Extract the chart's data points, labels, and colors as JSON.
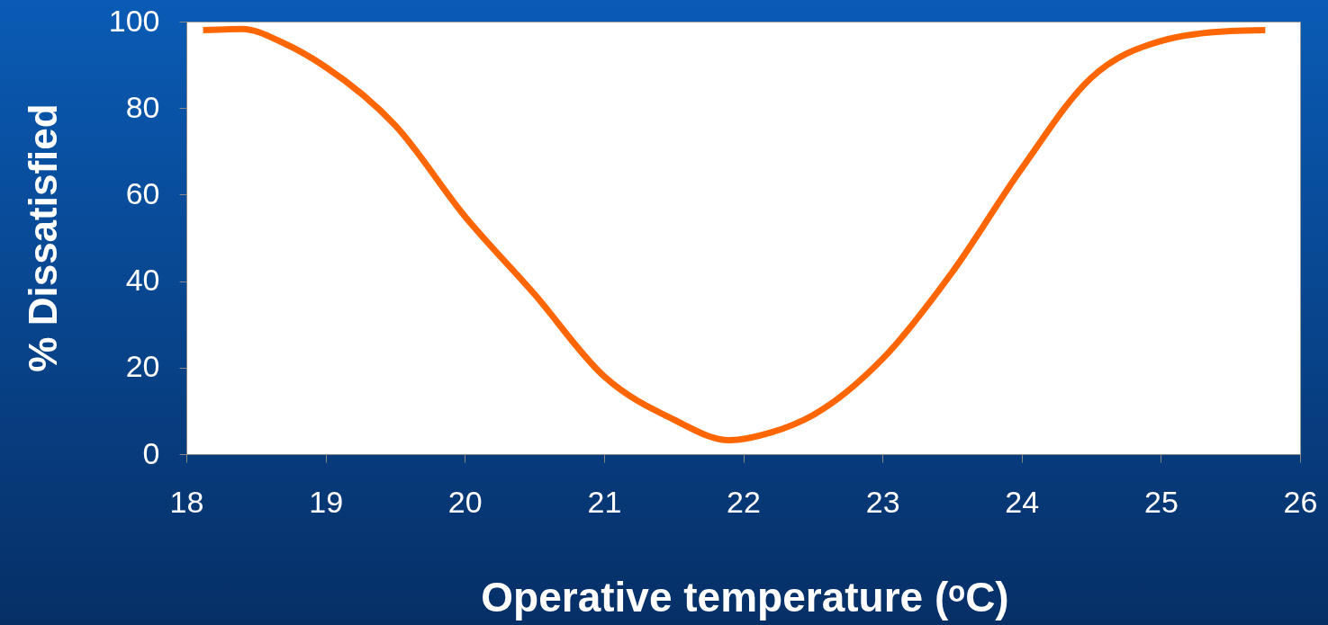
{
  "chart_data": {
    "type": "line",
    "xlabel": "Operative temperature (ᵒC)",
    "ylabel": "% Dissatisfied",
    "x": [
      18.12,
      18.4,
      18.7,
      19.0,
      19.5,
      20.0,
      20.5,
      21.0,
      21.5,
      21.9,
      22.2,
      22.5,
      23.0,
      23.5,
      24.0,
      24.5,
      25.0,
      25.5,
      25.75
    ],
    "series": [
      {
        "color": "#ff6600",
        "values": [
          98,
          98.3,
          95,
          89.5,
          76,
          55,
          37,
          18,
          8,
          3.2,
          5,
          9,
          22,
          42,
          66,
          87,
          95.5,
          97.8,
          98
        ]
      }
    ],
    "xlim": [
      18,
      26
    ],
    "xticks": [
      18,
      19,
      20,
      21,
      22,
      23,
      24,
      25,
      26
    ],
    "ylim": [
      0,
      100
    ],
    "yticks": [
      0,
      20,
      40,
      60,
      80,
      100
    ],
    "grid": false,
    "marker": "none",
    "line_style": "solid"
  }
}
